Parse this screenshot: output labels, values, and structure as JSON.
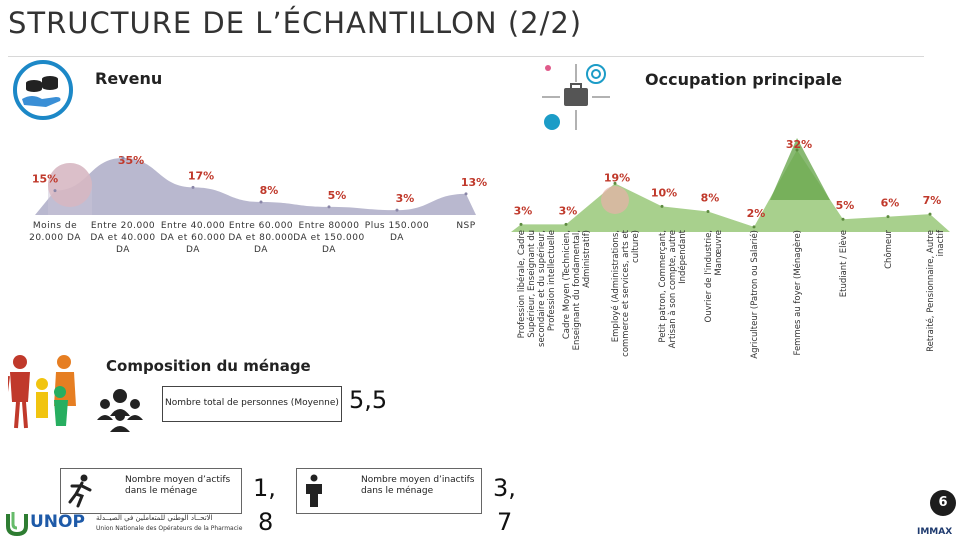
{
  "title": "STRUCTURE DE L’ÉCHANTILLON (2/2)",
  "revenu": {
    "title": "Revenu"
  },
  "occupation": {
    "title": "Occupation principale"
  },
  "menage": {
    "title": "Composition du ménage",
    "total_label": "Nombre total de personnes (Moyenne)",
    "total_value": "5,5",
    "actifs_label": "Nombre moyen d’actifs dans le ménage",
    "actifs_value_1": "1,",
    "actifs_value_2": "8",
    "inactifs_label": "Nombre moyen d’inactifs dans le ménage",
    "inactifs_value_1": "3,",
    "inactifs_value_2": "7"
  },
  "page_number": "6",
  "logos": {
    "unop": "UNOP",
    "unop_arabic": "الاتحــاد الوطني للمتعاملين في الصيــدلة",
    "unop_french": "Union Nationale des Opérateurs de la Pharmacie",
    "immax": "IMMAX"
  },
  "colors": {
    "revenu_fill": "#b9b8cf",
    "occupation_fill": "#a8d08d",
    "occupation_peak": "#6aa84f",
    "highlight_red": "#c0392b",
    "label_red": "#c0392b"
  },
  "chart_data": [
    {
      "type": "area",
      "title": "Revenu",
      "categories": [
        "Moins de 20.000 DA",
        "Entre 20.000 DA et 40.000 DA",
        "Entre 40.000 DA et 60.000 DA",
        "Entre 60.000 DA et 80.000 DA",
        "Entre 80000 DA et 150.000 DA",
        "Plus 150.000 DA",
        "NSP"
      ],
      "values": [
        15,
        35,
        17,
        8,
        5,
        3,
        13
      ],
      "labels": [
        "15%",
        "35%",
        "17%",
        "8%",
        "5%",
        "3%",
        "13%"
      ],
      "unit": "%"
    },
    {
      "type": "area",
      "title": "Occupation principale",
      "categories": [
        "Profession libérale, Cadre Supérieur, Enseignant du secondaire et du supérieur, Profession intellectuelle",
        "Cadre Moyen (Technicien, Enseignant du fondamental, Administratif)",
        "Employé (Administrations, commerce et services, arts et culture)",
        "Petit patron, Commerçant, Artisan à son compte, autre Indépendant",
        "Ouvrier de l'industrie, Manœuvre",
        "Agriculteur (Patron ou Salarié)",
        "Femmes au foyer (Ménagère)",
        "Etudiant / Elève",
        "Chômeur",
        "Retraité, Pensionnaire, Autre inactif"
      ],
      "values": [
        3,
        3,
        19,
        10,
        8,
        2,
        32,
        5,
        6,
        7
      ],
      "labels": [
        "3%",
        "3%",
        "19%",
        "10%",
        "8%",
        "2%",
        "32%",
        "5%",
        "6%",
        "7%"
      ],
      "unit": "%"
    }
  ]
}
